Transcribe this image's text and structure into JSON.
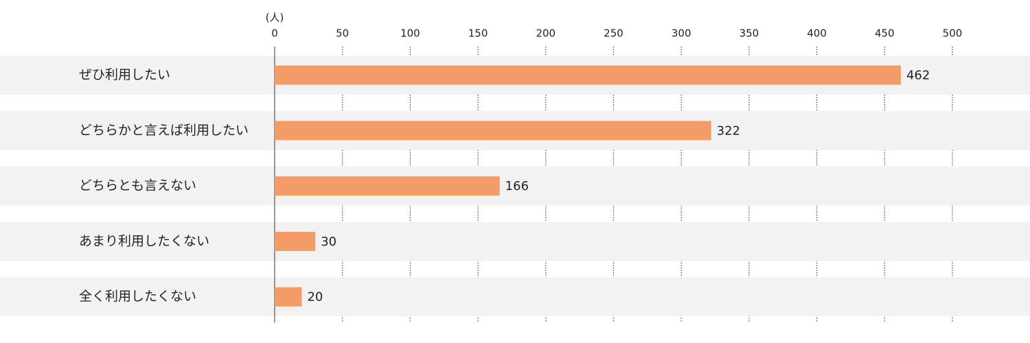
{
  "chart_data": {
    "type": "bar",
    "orientation": "horizontal",
    "unit_label": "(人)",
    "categories": [
      "ぜひ利用したい",
      "どちらかと言えば利用したい",
      "どちらとも言えない",
      "あまり利用したくない",
      "全く利用したくない"
    ],
    "values": [
      462,
      322,
      166,
      30,
      20
    ],
    "color": "#f39c68",
    "band_color": "#f2f2f2",
    "xlim": [
      0,
      500
    ],
    "xticks": [
      0,
      50,
      100,
      150,
      200,
      250,
      300,
      350,
      400,
      450,
      500
    ],
    "grid": true
  }
}
